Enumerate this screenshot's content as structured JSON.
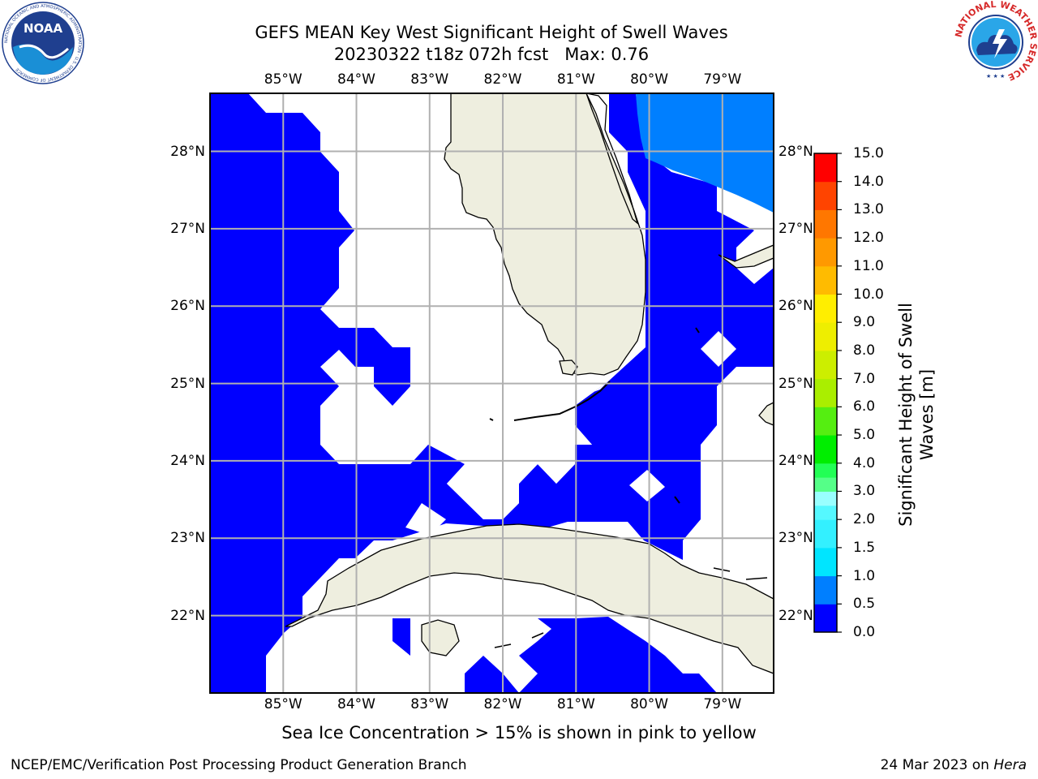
{
  "title": {
    "line1": "GEFS MEAN Key West Significant Height of Swell Waves",
    "line2": "20230322 t18z 072h fcst   Max: 0.76"
  },
  "map": {
    "lon_ticks": [
      "85°W",
      "84°W",
      "83°W",
      "82°W",
      "81°W",
      "80°W",
      "79°W"
    ],
    "lat_ticks": [
      "28°N",
      "27°N",
      "26°N",
      "25°N",
      "24°N",
      "23°N",
      "22°N"
    ],
    "extent": {
      "lon_min": -86.0,
      "lon_max": -78.3,
      "lat_min": 21.0,
      "lat_max": 28.75
    },
    "colors": {
      "land": "#eeeedf",
      "swell_0_0_5": "#0000ff",
      "swell_0_5_1_0": "#007fff",
      "grid": "#b0b0b0",
      "no_data": "#ffffff"
    },
    "max_value": 0.76
  },
  "colorbar": {
    "title": "Significant Height of Swell Waves [m]",
    "labels": [
      "15.0",
      "14.0",
      "13.0",
      "12.0",
      "11.0",
      "10.0",
      "9.0",
      "8.0",
      "7.0",
      "6.0",
      "5.0",
      "4.0",
      "3.0",
      "2.0",
      "1.5",
      "1.0",
      "0.5",
      "0.0"
    ],
    "bands": [
      {
        "from": 0.0,
        "to": 0.5,
        "color": "#0000ff"
      },
      {
        "from": 0.5,
        "to": 1.0,
        "color": "#007fff"
      },
      {
        "from": 1.0,
        "to": 1.5,
        "color": "#00e5ff"
      },
      {
        "from": 1.5,
        "to": 2.0,
        "color": "#33f0ff"
      },
      {
        "from": 2.0,
        "to": 2.5,
        "color": "#55f8ff"
      },
      {
        "from": 2.5,
        "to": 3.0,
        "color": "#99ffff"
      },
      {
        "from": 3.0,
        "to": 3.5,
        "color": "#55ff88"
      },
      {
        "from": 3.5,
        "to": 4.0,
        "color": "#22ff55"
      },
      {
        "from": 4.0,
        "to": 5.0,
        "color": "#00ee00"
      },
      {
        "from": 5.0,
        "to": 6.0,
        "color": "#55ee11"
      },
      {
        "from": 6.0,
        "to": 7.0,
        "color": "#aaee00"
      },
      {
        "from": 7.0,
        "to": 8.0,
        "color": "#ccee00"
      },
      {
        "from": 8.0,
        "to": 9.0,
        "color": "#eeee00"
      },
      {
        "from": 9.0,
        "to": 10.0,
        "color": "#ffee00"
      },
      {
        "from": 10.0,
        "to": 11.0,
        "color": "#ffbb00"
      },
      {
        "from": 11.0,
        "to": 12.0,
        "color": "#ff9900"
      },
      {
        "from": 12.0,
        "to": 13.0,
        "color": "#ff7700"
      },
      {
        "from": 13.0,
        "to": 14.0,
        "color": "#ff4400"
      },
      {
        "from": 14.0,
        "to": 15.0,
        "color": "#ff0000"
      }
    ]
  },
  "note": "Sea Ice Concentration > 15% is shown in pink to yellow",
  "footer": {
    "left": "NCEP/EMC/Verification Post Processing Product Generation Branch",
    "right_date": "24 Mar 2023 on ",
    "right_host": "Hera"
  },
  "logos": {
    "noaa_text": "NOAA",
    "noaa_ring_text": "NATIONAL OCEANIC AND ATMOSPHERIC ADMINISTRATION · U.S. DEPARTMENT OF COMMERCE",
    "nws_ring_text": "NATIONAL WEATHER SERVICE"
  }
}
